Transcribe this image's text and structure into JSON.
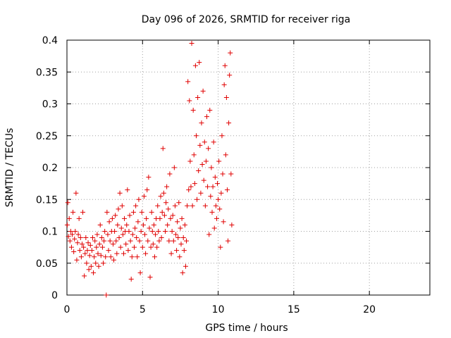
{
  "chart_data": {
    "type": "scatter",
    "title": "Day 096 of 2026, SRMTID for receiver riga",
    "xlabel": "GPS time / hours",
    "ylabel": "SRMTID / TECUs",
    "xlim": [
      0,
      24
    ],
    "ylim": [
      0,
      0.4
    ],
    "x_ticks": [
      0,
      5,
      10,
      15,
      20
    ],
    "x_tick_labels": [
      "0",
      "5",
      "10",
      "15",
      "20"
    ],
    "y_ticks": [
      0,
      0.05,
      0.1,
      0.15,
      0.2,
      0.25,
      0.3,
      0.35,
      0.4
    ],
    "y_tick_labels": [
      "0",
      "0.05",
      "0.1",
      "0.15",
      "0.2",
      "0.25",
      "0.3",
      "0.35",
      "0.4"
    ],
    "grid": true,
    "marker": "plus",
    "series_color": "#e00000",
    "series": [
      {
        "name": "SRMTID",
        "points": [
          [
            0.02,
            0.11
          ],
          [
            0.06,
            0.145
          ],
          [
            0.1,
            0.092
          ],
          [
            0.15,
            0.12
          ],
          [
            0.2,
            0.085
          ],
          [
            0.25,
            0.1
          ],
          [
            0.3,
            0.075
          ],
          [
            0.35,
            0.095
          ],
          [
            0.4,
            0.13
          ],
          [
            0.45,
            0.068
          ],
          [
            0.5,
            0.088
          ],
          [
            0.55,
            0.1
          ],
          [
            0.6,
            0.16
          ],
          [
            0.65,
            0.055
          ],
          [
            0.7,
            0.082
          ],
          [
            0.75,
            0.095
          ],
          [
            0.8,
            0.12
          ],
          [
            0.85,
            0.07
          ],
          [
            0.9,
            0.09
          ],
          [
            0.95,
            0.06
          ],
          [
            1.0,
            0.08
          ],
          [
            1.05,
            0.13
          ],
          [
            1.1,
            0.075
          ],
          [
            1.15,
            0.03
          ],
          [
            1.2,
            0.065
          ],
          [
            1.25,
            0.09
          ],
          [
            1.3,
            0.05
          ],
          [
            1.35,
            0.07
          ],
          [
            1.4,
            0.082
          ],
          [
            1.45,
            0.04
          ],
          [
            1.5,
            0.062
          ],
          [
            1.55,
            0.078
          ],
          [
            1.6,
            0.045
          ],
          [
            1.65,
            0.07
          ],
          [
            1.7,
            0.09
          ],
          [
            1.75,
            0.035
          ],
          [
            1.8,
            0.06
          ],
          [
            1.85,
            0.085
          ],
          [
            1.9,
            0.05
          ],
          [
            1.95,
            0.075
          ],
          [
            2.0,
            0.095
          ],
          [
            2.05,
            0.065
          ],
          [
            2.1,
            0.045
          ],
          [
            2.15,
            0.08
          ],
          [
            2.2,
            0.11
          ],
          [
            2.25,
            0.062
          ],
          [
            2.3,
            0.09
          ],
          [
            2.35,
            0.075
          ],
          [
            2.4,
            0.05
          ],
          [
            2.45,
            0.085
          ],
          [
            2.5,
            0.1
          ],
          [
            2.55,
            0.06
          ],
          [
            2.6,
            0.0
          ],
          [
            2.65,
            0.13
          ],
          [
            2.7,
            0.095
          ],
          [
            2.75,
            0.07
          ],
          [
            2.8,
            0.115
          ],
          [
            2.85,
            0.085
          ],
          [
            2.9,
            0.06
          ],
          [
            2.95,
            0.1
          ],
          [
            3.0,
            0.12
          ],
          [
            3.05,
            0.08
          ],
          [
            3.1,
            0.055
          ],
          [
            3.15,
            0.1
          ],
          [
            3.2,
            0.125
          ],
          [
            3.25,
            0.085
          ],
          [
            3.3,
            0.065
          ],
          [
            3.35,
            0.11
          ],
          [
            3.4,
            0.135
          ],
          [
            3.45,
            0.09
          ],
          [
            3.5,
            0.16
          ],
          [
            3.55,
            0.075
          ],
          [
            3.6,
            0.105
          ],
          [
            3.65,
            0.14
          ],
          [
            3.7,
            0.095
          ],
          [
            3.75,
            0.065
          ],
          [
            3.8,
            0.12
          ],
          [
            3.85,
            0.1
          ],
          [
            3.9,
            0.08
          ],
          [
            3.95,
            0.11
          ],
          [
            4.0,
            0.165
          ],
          [
            4.05,
            0.07
          ],
          [
            4.1,
            0.1
          ],
          [
            4.15,
            0.125
          ],
          [
            4.2,
            0.085
          ],
          [
            4.25,
            0.025
          ],
          [
            4.3,
            0.06
          ],
          [
            4.35,
            0.095
          ],
          [
            4.4,
            0.13
          ],
          [
            4.45,
            0.075
          ],
          [
            4.5,
            0.105
          ],
          [
            4.55,
            0.14
          ],
          [
            4.6,
            0.09
          ],
          [
            4.65,
            0.06
          ],
          [
            4.7,
            0.115
          ],
          [
            4.75,
            0.15
          ],
          [
            4.8,
            0.085
          ],
          [
            4.85,
            0.035
          ],
          [
            4.9,
            0.1
          ],
          [
            4.95,
            0.13
          ],
          [
            5.0,
            0.075
          ],
          [
            5.05,
            0.11
          ],
          [
            5.1,
            0.155
          ],
          [
            5.15,
            0.095
          ],
          [
            5.2,
            0.065
          ],
          [
            5.25,
            0.12
          ],
          [
            5.3,
            0.165
          ],
          [
            5.35,
            0.085
          ],
          [
            5.4,
            0.185
          ],
          [
            5.45,
            0.105
          ],
          [
            5.5,
            0.028
          ],
          [
            5.55,
            0.075
          ],
          [
            5.6,
            0.13
          ],
          [
            5.65,
            0.1
          ],
          [
            5.7,
            0.08
          ],
          [
            5.75,
            0.11
          ],
          [
            5.8,
            0.06
          ],
          [
            5.85,
            0.095
          ],
          [
            5.9,
            0.12
          ],
          [
            5.95,
            0.075
          ],
          [
            6.0,
            0.14
          ],
          [
            6.05,
            0.1
          ],
          [
            6.1,
            0.085
          ],
          [
            6.15,
            0.12
          ],
          [
            6.2,
            0.155
          ],
          [
            6.25,
            0.09
          ],
          [
            6.3,
            0.13
          ],
          [
            6.35,
            0.23
          ],
          [
            6.4,
            0.16
          ],
          [
            6.45,
            0.125
          ],
          [
            6.5,
            0.1
          ],
          [
            6.55,
            0.145
          ],
          [
            6.6,
            0.17
          ],
          [
            6.65,
            0.11
          ],
          [
            6.7,
            0.135
          ],
          [
            6.75,
            0.085
          ],
          [
            6.8,
            0.19
          ],
          [
            6.85,
            0.12
          ],
          [
            6.9,
            0.065
          ],
          [
            6.95,
            0.1
          ],
          [
            7.0,
            0.125
          ],
          [
            7.05,
            0.085
          ],
          [
            7.1,
            0.2
          ],
          [
            7.15,
            0.14
          ],
          [
            7.2,
            0.095
          ],
          [
            7.25,
            0.07
          ],
          [
            7.3,
            0.115
          ],
          [
            7.35,
            0.09
          ],
          [
            7.4,
            0.145
          ],
          [
            7.45,
            0.06
          ],
          [
            7.5,
            0.105
          ],
          [
            7.55,
            0.08
          ],
          [
            7.6,
            0.12
          ],
          [
            7.65,
            0.035
          ],
          [
            7.7,
            0.09
          ],
          [
            7.75,
            0.07
          ],
          [
            7.8,
            0.11
          ],
          [
            7.85,
            0.045
          ],
          [
            7.9,
            0.085
          ],
          [
            7.95,
            0.14
          ],
          [
            8.0,
            0.335
          ],
          [
            8.05,
            0.165
          ],
          [
            8.1,
            0.305
          ],
          [
            8.15,
            0.21
          ],
          [
            8.2,
            0.17
          ],
          [
            8.25,
            0.395
          ],
          [
            8.3,
            0.14
          ],
          [
            8.35,
            0.29
          ],
          [
            8.4,
            0.22
          ],
          [
            8.45,
            0.175
          ],
          [
            8.5,
            0.36
          ],
          [
            8.55,
            0.25
          ],
          [
            8.6,
            0.15
          ],
          [
            8.65,
            0.31
          ],
          [
            8.7,
            0.195
          ],
          [
            8.75,
            0.365
          ],
          [
            8.8,
            0.235
          ],
          [
            8.85,
            0.16
          ],
          [
            8.9,
            0.27
          ],
          [
            8.95,
            0.205
          ],
          [
            9.0,
            0.32
          ],
          [
            9.05,
            0.18
          ],
          [
            9.1,
            0.24
          ],
          [
            9.15,
            0.14
          ],
          [
            9.2,
            0.21
          ],
          [
            9.25,
            0.28
          ],
          [
            9.3,
            0.17
          ],
          [
            9.35,
            0.23
          ],
          [
            9.4,
            0.095
          ],
          [
            9.45,
            0.29
          ],
          [
            9.5,
            0.155
          ],
          [
            9.55,
            0.2
          ],
          [
            9.6,
            0.13
          ],
          [
            9.65,
            0.17
          ],
          [
            9.7,
            0.24
          ],
          [
            9.75,
            0.105
          ],
          [
            9.8,
            0.185
          ],
          [
            9.85,
            0.14
          ],
          [
            9.9,
            0.12
          ],
          [
            9.95,
            0.175
          ],
          [
            10.0,
            0.15
          ],
          [
            10.05,
            0.21
          ],
          [
            10.1,
            0.135
          ],
          [
            10.15,
            0.075
          ],
          [
            10.2,
            0.16
          ],
          [
            10.25,
            0.25
          ],
          [
            10.3,
            0.19
          ],
          [
            10.35,
            0.115
          ],
          [
            10.4,
            0.33
          ],
          [
            10.45,
            0.36
          ],
          [
            10.5,
            0.22
          ],
          [
            10.55,
            0.31
          ],
          [
            10.6,
            0.165
          ],
          [
            10.65,
            0.085
          ],
          [
            10.7,
            0.27
          ],
          [
            10.75,
            0.345
          ],
          [
            10.8,
            0.38
          ],
          [
            10.85,
            0.19
          ],
          [
            10.9,
            0.11
          ]
        ]
      }
    ]
  }
}
